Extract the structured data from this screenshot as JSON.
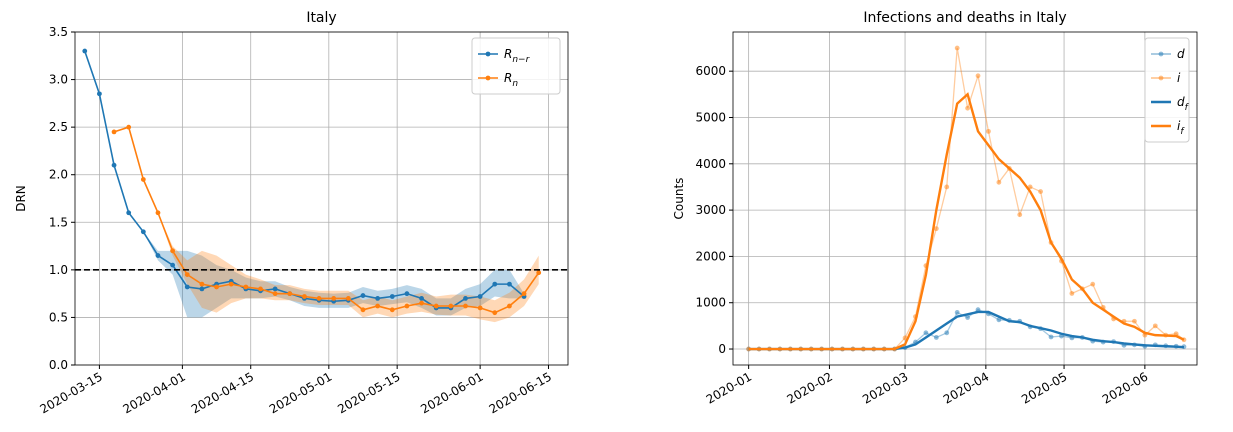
{
  "chart_data": [
    {
      "type": "line",
      "title": "Italy",
      "ylabel": "DRN",
      "grid": true,
      "legend": "upper right",
      "hline": 1,
      "hline_color": "#000000",
      "xlim": [
        "2020-03-10",
        "2020-06-19"
      ],
      "xticks": [
        "2020-03-15",
        "2020-04-01",
        "2020-04-15",
        "2020-05-01",
        "2020-05-15",
        "2020-06-01",
        "2020-06-15"
      ],
      "ylim": [
        0,
        3.5
      ],
      "yticks": [
        {
          "value": 0,
          "label": "0.0"
        },
        0.5,
        {
          "value": 1,
          "label": "1.0"
        },
        1.5,
        {
          "value": 2,
          "label": "2.0"
        },
        2.5,
        {
          "value": 3,
          "label": "3.0"
        },
        3.5
      ],
      "series": [
        {
          "name": "R",
          "subscript": "n−r",
          "color": "#1f77b4",
          "marker": true,
          "x": [
            "2020-03-12",
            "2020-03-15",
            "2020-03-18",
            "2020-03-21",
            "2020-03-24",
            "2020-03-27",
            "2020-03-30",
            "2020-04-02",
            "2020-04-05",
            "2020-04-08",
            "2020-04-11",
            "2020-04-14",
            "2020-04-17",
            "2020-04-20",
            "2020-04-23",
            "2020-04-26",
            "2020-04-29",
            "2020-05-02",
            "2020-05-05",
            "2020-05-08",
            "2020-05-11",
            "2020-05-14",
            "2020-05-17",
            "2020-05-20",
            "2020-05-23",
            "2020-05-26",
            "2020-05-29",
            "2020-06-01",
            "2020-06-04",
            "2020-06-07",
            "2020-06-10"
          ],
          "values": [
            3.3,
            2.85,
            2.1,
            1.6,
            1.4,
            1.15,
            1.05,
            0.82,
            0.8,
            0.85,
            0.88,
            0.8,
            0.78,
            0.8,
            0.75,
            0.7,
            0.68,
            0.67,
            0.68,
            0.73,
            0.7,
            0.72,
            0.75,
            0.7,
            0.6,
            0.6,
            0.7,
            0.72,
            0.85,
            0.85,
            0.72
          ],
          "lower": [
            3.3,
            2.85,
            2.1,
            1.6,
            1.4,
            1.1,
            0.95,
            0.5,
            0.5,
            0.6,
            0.7,
            0.7,
            0.7,
            0.72,
            0.68,
            0.62,
            0.6,
            0.6,
            0.6,
            0.65,
            0.62,
            0.64,
            0.66,
            0.6,
            0.52,
            0.52,
            0.6,
            0.62,
            0.72,
            0.7,
            0.7
          ],
          "upper": [
            3.3,
            2.85,
            2.1,
            1.6,
            1.4,
            1.2,
            1.2,
            1.2,
            1.15,
            1.05,
            1.0,
            0.92,
            0.88,
            0.88,
            0.82,
            0.78,
            0.76,
            0.75,
            0.76,
            0.82,
            0.78,
            0.8,
            0.84,
            0.8,
            0.7,
            0.7,
            0.8,
            0.85,
            1.0,
            1.0,
            0.75
          ]
        },
        {
          "name": "R",
          "subscript": "n",
          "color": "#ff7f0e",
          "marker": true,
          "x": [
            "2020-03-18",
            "2020-03-21",
            "2020-03-24",
            "2020-03-27",
            "2020-03-30",
            "2020-04-02",
            "2020-04-05",
            "2020-04-08",
            "2020-04-11",
            "2020-04-14",
            "2020-04-17",
            "2020-04-20",
            "2020-04-23",
            "2020-04-26",
            "2020-04-29",
            "2020-05-02",
            "2020-05-05",
            "2020-05-08",
            "2020-05-11",
            "2020-05-14",
            "2020-05-17",
            "2020-05-20",
            "2020-05-23",
            "2020-05-26",
            "2020-05-29",
            "2020-06-01",
            "2020-06-04",
            "2020-06-07",
            "2020-06-10",
            "2020-06-13"
          ],
          "values": [
            2.45,
            2.5,
            1.95,
            1.6,
            1.2,
            0.95,
            0.85,
            0.82,
            0.85,
            0.82,
            0.8,
            0.75,
            0.75,
            0.72,
            0.7,
            0.7,
            0.7,
            0.58,
            0.62,
            0.58,
            0.62,
            0.65,
            0.62,
            0.62,
            0.62,
            0.6,
            0.55,
            0.62,
            0.75,
            0.97
          ],
          "lower": [
            2.45,
            2.5,
            1.95,
            1.6,
            1.15,
            0.85,
            0.6,
            0.55,
            0.65,
            0.7,
            0.7,
            0.68,
            0.68,
            0.65,
            0.63,
            0.63,
            0.63,
            0.5,
            0.54,
            0.5,
            0.54,
            0.56,
            0.53,
            0.52,
            0.52,
            0.48,
            0.45,
            0.5,
            0.62,
            0.85
          ],
          "upper": [
            2.45,
            2.5,
            1.95,
            1.6,
            1.25,
            1.1,
            1.2,
            1.15,
            1.05,
            0.95,
            0.9,
            0.84,
            0.84,
            0.8,
            0.78,
            0.78,
            0.78,
            0.68,
            0.72,
            0.68,
            0.72,
            0.76,
            0.72,
            0.74,
            0.74,
            0.72,
            0.68,
            0.76,
            0.9,
            1.15
          ]
        }
      ]
    },
    {
      "type": "line",
      "title": "Infections and deaths in Italy",
      "ylabel": "Counts",
      "grid": true,
      "legend": "upper right",
      "xlim": [
        "2019-12-26",
        "2020-06-21"
      ],
      "xticks": [
        {
          "value": "2020-01-01",
          "label": "2020-01"
        },
        {
          "value": "2020-02-01",
          "label": "2020-02"
        },
        {
          "value": "2020-03-01",
          "label": "2020-03"
        },
        {
          "value": "2020-04-01",
          "label": "2020-04"
        },
        {
          "value": "2020-05-01",
          "label": "2020-05"
        },
        {
          "value": "2020-06-01",
          "label": "2020-06"
        }
      ],
      "ylim": [
        -345,
        6846
      ],
      "yticks": [
        0,
        1000,
        2000,
        3000,
        4000,
        5000,
        6000
      ],
      "x": [
        "2020-01-01",
        "2020-01-05",
        "2020-01-09",
        "2020-01-13",
        "2020-01-17",
        "2020-01-21",
        "2020-01-25",
        "2020-01-29",
        "2020-02-02",
        "2020-02-06",
        "2020-02-10",
        "2020-02-14",
        "2020-02-18",
        "2020-02-22",
        "2020-02-26",
        "2020-03-01",
        "2020-03-05",
        "2020-03-09",
        "2020-03-13",
        "2020-03-17",
        "2020-03-21",
        "2020-03-25",
        "2020-03-29",
        "2020-04-02",
        "2020-04-06",
        "2020-04-10",
        "2020-04-14",
        "2020-04-18",
        "2020-04-22",
        "2020-04-26",
        "2020-04-30",
        "2020-05-04",
        "2020-05-08",
        "2020-05-12",
        "2020-05-16",
        "2020-05-20",
        "2020-05-24",
        "2020-05-28",
        "2020-06-01",
        "2020-06-05",
        "2020-06-09",
        "2020-06-13",
        "2020-06-16"
      ],
      "series": [
        {
          "name": "d",
          "color": "#1f77b4",
          "marker": true,
          "alpha": 0.5,
          "values": [
            0,
            0,
            0,
            0,
            0,
            0,
            0,
            0,
            0,
            0,
            0,
            0,
            0,
            0,
            0,
            30,
            150,
            350,
            250,
            350,
            790,
            680,
            850,
            760,
            630,
            620,
            600,
            480,
            440,
            260,
            280,
            240,
            250,
            170,
            150,
            160,
            80,
            90,
            60,
            90,
            70,
            60,
            50
          ]
        },
        {
          "name": "i",
          "color": "#ff7f0e",
          "marker": true,
          "alpha": 0.5,
          "values": [
            0,
            0,
            0,
            0,
            0,
            0,
            0,
            0,
            0,
            0,
            0,
            0,
            0,
            0,
            0,
            240,
            700,
            1800,
            2600,
            3500,
            6500,
            5200,
            5900,
            4700,
            3600,
            3900,
            2900,
            3500,
            3400,
            2300,
            1900,
            1200,
            1300,
            1400,
            900,
            650,
            600,
            600,
            300,
            500,
            300,
            330,
            200
          ]
        },
        {
          "name": "d",
          "subscript": "f",
          "color": "#1f77b4",
          "marker": false,
          "alpha": 1,
          "values": [
            0,
            0,
            0,
            0,
            0,
            0,
            0,
            0,
            0,
            0,
            0,
            0,
            0,
            0,
            0,
            30,
            100,
            250,
            400,
            550,
            700,
            750,
            800,
            800,
            700,
            600,
            580,
            500,
            450,
            400,
            330,
            280,
            250,
            200,
            170,
            150,
            120,
            100,
            80,
            70,
            60,
            50,
            40
          ]
        },
        {
          "name": "i",
          "subscript": "f",
          "color": "#ff7f0e",
          "marker": false,
          "alpha": 1,
          "values": [
            0,
            0,
            0,
            0,
            0,
            0,
            0,
            0,
            0,
            0,
            0,
            0,
            0,
            0,
            0,
            100,
            600,
            1600,
            3000,
            4200,
            5300,
            5500,
            4700,
            4400,
            4100,
            3900,
            3700,
            3400,
            3000,
            2300,
            1950,
            1500,
            1300,
            1000,
            850,
            700,
            550,
            480,
            350,
            300,
            290,
            280,
            200
          ]
        }
      ]
    }
  ]
}
